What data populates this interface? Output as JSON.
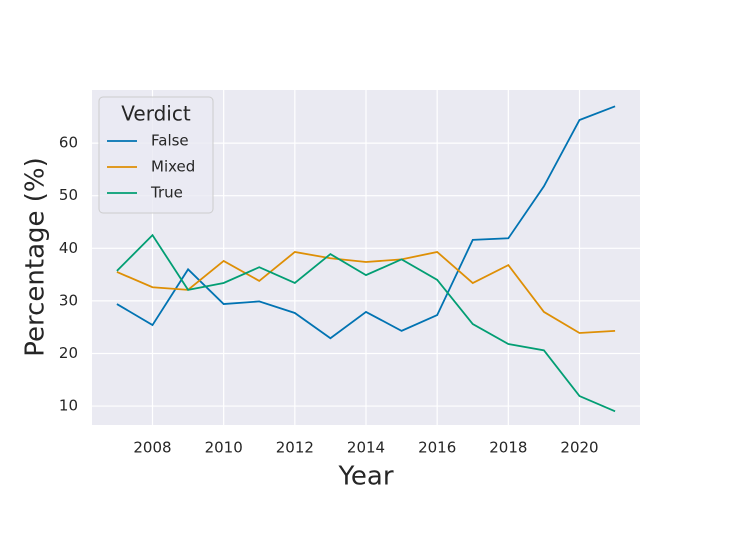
{
  "chart_data": {
    "type": "line",
    "x": [
      2007,
      2008,
      2009,
      2010,
      2011,
      2012,
      2013,
      2014,
      2015,
      2016,
      2017,
      2018,
      2019,
      2020,
      2021
    ],
    "series": [
      {
        "name": "False",
        "color": "#0173b2",
        "values": [
          29.4,
          25.4,
          36.0,
          29.4,
          29.9,
          27.7,
          22.9,
          27.9,
          24.3,
          27.3,
          41.6,
          41.9,
          51.8,
          64.4,
          67.0
        ]
      },
      {
        "name": "Mixed",
        "color": "#de8f05",
        "values": [
          35.5,
          32.6,
          32.1,
          37.6,
          33.8,
          39.3,
          38.1,
          37.4,
          37.9,
          39.3,
          33.4,
          36.8,
          27.9,
          23.9,
          24.3
        ]
      },
      {
        "name": "True",
        "color": "#029e73",
        "values": [
          35.7,
          42.5,
          32.1,
          33.4,
          36.4,
          33.4,
          38.9,
          34.9,
          37.9,
          34.0,
          25.6,
          21.8,
          20.6,
          11.9,
          9.0
        ]
      }
    ],
    "xlabel": "Year",
    "ylabel": "Percentage (%)",
    "legend_title": "Verdict",
    "legend": "upper left",
    "xlim": [
      2006.3,
      2021.7
    ],
    "xticks": [
      2008,
      2010,
      2012,
      2014,
      2016,
      2018,
      2020
    ],
    "ylim": [
      6.4,
      70.1
    ],
    "yticks": [
      10,
      20,
      30,
      40,
      50,
      60
    ],
    "grid": true
  }
}
